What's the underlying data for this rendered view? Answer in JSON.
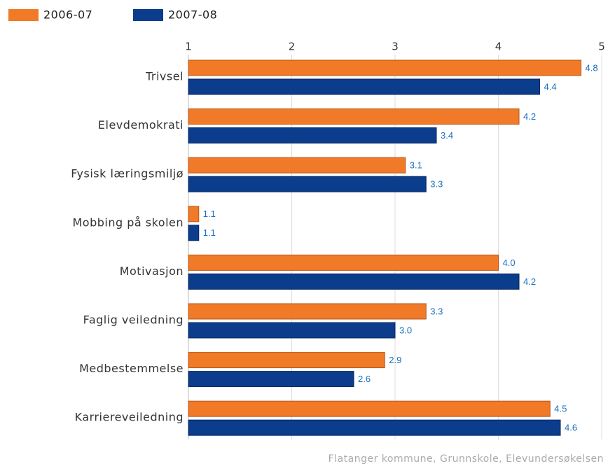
{
  "chart_data": {
    "type": "bar",
    "orientation": "horizontal",
    "categories": [
      "Trivsel",
      "Elevdemokrati",
      "Fysisk læringsmiljø",
      "Mobbing på skolen",
      "Motivasjon",
      "Faglig veiledning",
      "Medbestemmelse",
      "Karriereveiledning"
    ],
    "series": [
      {
        "name": "2006-07",
        "color": "#f07a28",
        "values": [
          4.8,
          4.2,
          3.1,
          1.1,
          4.0,
          3.3,
          2.9,
          4.5
        ],
        "value_labels": [
          "4.8",
          "4.2",
          "3.1",
          "1.1",
          "4.0",
          "3.3",
          "2.9",
          "4.5"
        ]
      },
      {
        "name": "2007-08",
        "color": "#0b3d8c",
        "values": [
          4.4,
          3.4,
          3.3,
          1.1,
          4.2,
          3.0,
          2.6,
          4.6
        ],
        "value_labels": [
          "4.4",
          "3.4",
          "3.3",
          "1.1",
          "4.2",
          "3.0",
          "2.6",
          "4.6"
        ]
      }
    ],
    "xlim": [
      1,
      5
    ],
    "xticks": [
      1,
      2,
      3,
      4,
      5
    ],
    "grid": true,
    "source": "Flatanger kommune, Grunnskole, Elevundersøkelsen"
  }
}
